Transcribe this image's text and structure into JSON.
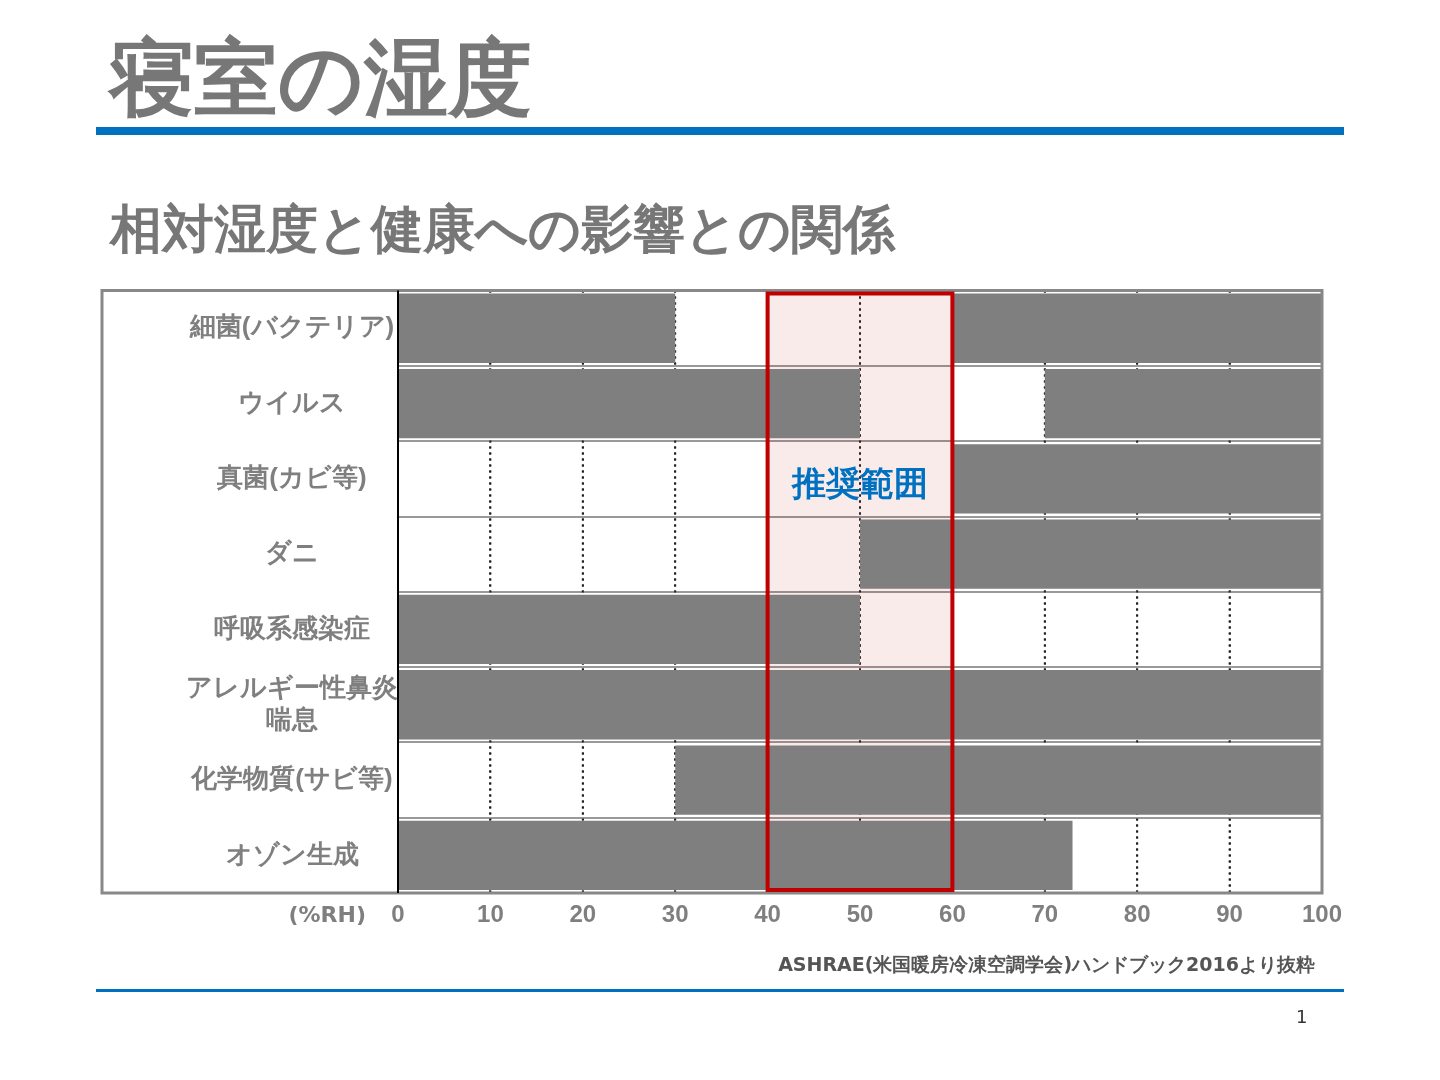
{
  "chart_data": {
    "type": "bar",
    "orientation": "horizontal",
    "title": "寝室の湿度",
    "subtitle": "相対湿度と健康への影響との関係",
    "xlabel": "(%RH)",
    "categories": [
      "細菌(バクテリア)",
      "ウイルス",
      "真菌(カビ等)",
      "ダニ",
      "呼吸系感染症",
      "アレルギー性鼻炎喘息",
      "化学物質(サビ等)",
      "オゾン生成"
    ],
    "series": [
      {
        "color": "#7f7f7f",
        "base": [
          0,
          0,
          null,
          null,
          0,
          0,
          null,
          0
        ],
        "values": [
          30,
          50,
          null,
          null,
          50,
          50,
          null,
          73
        ]
      },
      {
        "color": "#7f7f7f",
        "base": [
          60,
          70,
          60,
          50,
          null,
          50,
          30,
          null
        ],
        "values": [
          40,
          30,
          40,
          50,
          null,
          50,
          70,
          null
        ]
      }
    ],
    "xlim": [
      0,
      100
    ],
    "xticks": [
      0,
      10,
      20,
      30,
      40,
      50,
      60,
      70,
      80,
      90,
      100
    ],
    "grid": "x",
    "line_style": "dotted",
    "legend": false,
    "bands": [
      {
        "axis": "x",
        "from": 40,
        "to": 60,
        "label": "推奨範囲",
        "color": "#c00000"
      }
    ],
    "annotations": [
      "ASHRAE(米国暖房冷凍空調学会)ハンドブック2016より抜粋",
      "1"
    ]
  }
}
